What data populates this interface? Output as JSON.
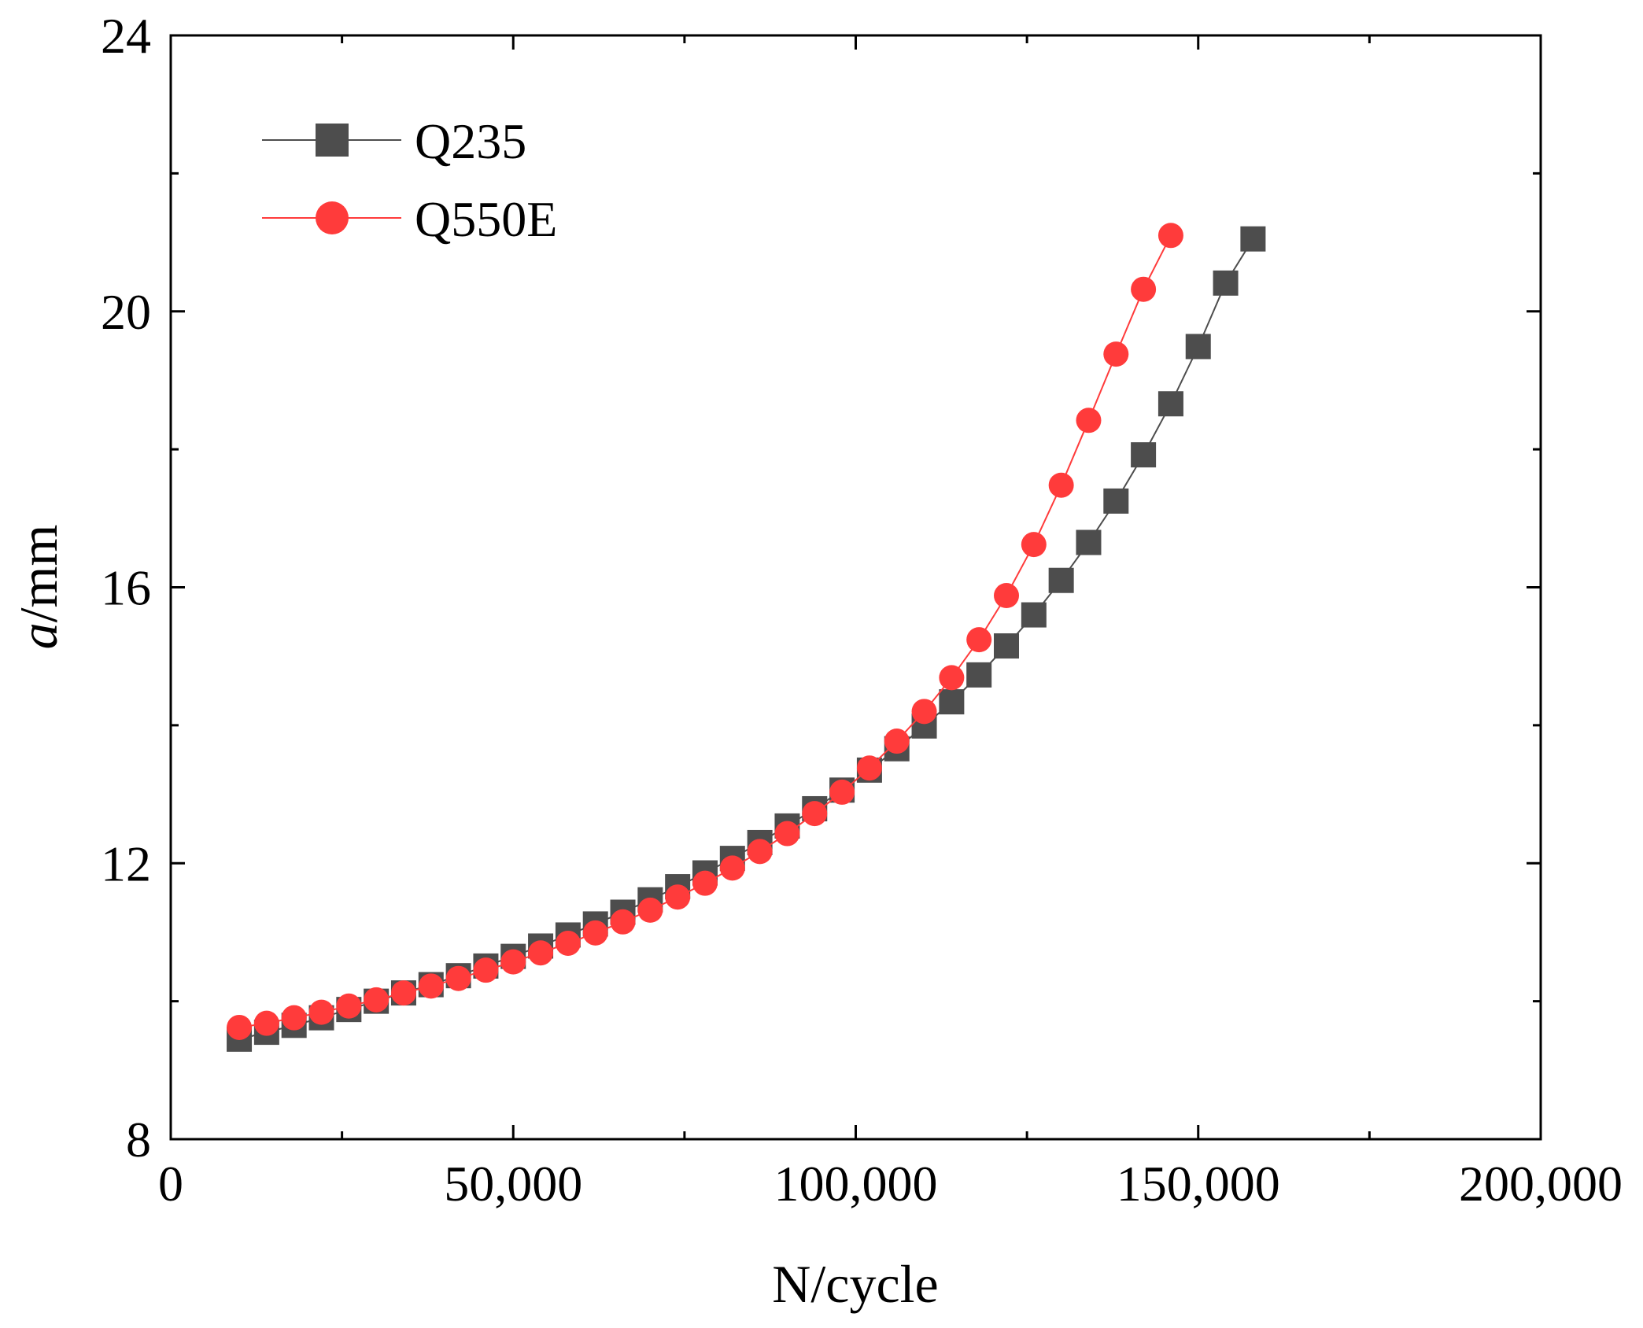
{
  "chart_data": {
    "type": "scatter",
    "title": "",
    "xlabel": "N/cycle",
    "ylabel_italic": "a",
    "ylabel_rest": "/mm",
    "xlim": [
      0,
      200000
    ],
    "ylim": [
      8,
      24
    ],
    "x_ticks": [
      0,
      50000,
      100000,
      150000,
      200000
    ],
    "x_tick_labels": [
      "0",
      "50,000",
      "100,000",
      "150,000",
      "200,000"
    ],
    "y_ticks": [
      8,
      12,
      16,
      20,
      24
    ],
    "y_tick_labels": [
      "8",
      "12",
      "16",
      "20",
      "24"
    ],
    "grid": false,
    "legend_position": "top-left",
    "series": [
      {
        "name": "Q235",
        "color": "#4d4d4d",
        "marker": "square",
        "x": [
          10000,
          14000,
          18000,
          22000,
          26000,
          30000,
          34000,
          38000,
          42000,
          46000,
          50000,
          54000,
          58000,
          62000,
          66000,
          70000,
          74000,
          78000,
          82000,
          86000,
          90000,
          94000,
          98000,
          102000,
          106000,
          110000,
          114000,
          118000,
          122000,
          126000,
          130000,
          134000,
          138000,
          142000,
          146000,
          150000,
          154000,
          158000
        ],
        "y": [
          9.45,
          9.55,
          9.65,
          9.76,
          9.88,
          10.0,
          10.12,
          10.24,
          10.37,
          10.51,
          10.65,
          10.8,
          10.96,
          11.12,
          11.29,
          11.47,
          11.66,
          11.86,
          12.07,
          12.3,
          12.54,
          12.79,
          13.06,
          13.35,
          13.66,
          13.99,
          14.34,
          14.73,
          15.15,
          15.6,
          16.1,
          16.65,
          17.25,
          17.92,
          18.66,
          19.49,
          20.41,
          21.05
        ]
      },
      {
        "name": "Q550E",
        "color": "#ff3b3b",
        "marker": "circle",
        "x": [
          10000,
          14000,
          18000,
          22000,
          26000,
          30000,
          34000,
          38000,
          42000,
          46000,
          50000,
          54000,
          58000,
          62000,
          66000,
          70000,
          74000,
          78000,
          82000,
          86000,
          90000,
          94000,
          98000,
          102000,
          106000,
          110000,
          114000,
          118000,
          122000,
          126000,
          130000,
          134000,
          138000,
          142000,
          146000
        ],
        "y": [
          9.62,
          9.68,
          9.76,
          9.84,
          9.93,
          10.02,
          10.12,
          10.22,
          10.33,
          10.45,
          10.57,
          10.7,
          10.84,
          10.99,
          11.15,
          11.32,
          11.51,
          11.71,
          11.93,
          12.17,
          12.43,
          12.72,
          13.03,
          13.38,
          13.77,
          14.2,
          14.69,
          15.24,
          15.88,
          16.62,
          17.48,
          18.42,
          19.38,
          20.32,
          21.1
        ]
      }
    ]
  }
}
